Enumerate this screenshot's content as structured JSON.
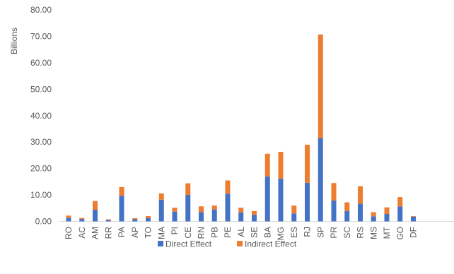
{
  "chart_data": {
    "type": "bar",
    "stacked": true,
    "title": "",
    "xlabel": "",
    "ylabel": "Billions",
    "ylim": [
      0,
      80
    ],
    "yticks": [
      "0.00",
      "10.00",
      "20.00",
      "30.00",
      "40.00",
      "50.00",
      "60.00",
      "70.00",
      "80.00"
    ],
    "grid": false,
    "legend_position": "bottom",
    "categories": [
      "RO",
      "AC",
      "AM",
      "RR",
      "PA",
      "AP",
      "TO",
      "MA",
      "PI",
      "CE",
      "RN",
      "PB",
      "PE",
      "AL",
      "SE",
      "BA",
      "MG",
      "ES",
      "RJ",
      "SP",
      "PR",
      "SC",
      "RS",
      "MS",
      "MT",
      "GO",
      "DF"
    ],
    "series": [
      {
        "name": "Direct Effect",
        "color": "#4472C4",
        "values": [
          1.3,
          0.9,
          4.4,
          0.5,
          9.7,
          0.8,
          1.2,
          8.2,
          3.7,
          10.0,
          3.5,
          4.5,
          10.5,
          3.4,
          2.5,
          17.0,
          16.2,
          3.0,
          14.6,
          31.5,
          7.9,
          3.9,
          6.7,
          1.9,
          2.8,
          5.6,
          1.8
        ]
      },
      {
        "name": "Indirect Effect",
        "color": "#ED7D31",
        "values": [
          0.9,
          0.4,
          3.3,
          0.3,
          3.3,
          0.4,
          0.8,
          2.4,
          1.5,
          4.4,
          2.2,
          1.5,
          5.0,
          1.8,
          1.4,
          8.6,
          10.1,
          3.0,
          14.4,
          39.2,
          6.6,
          3.3,
          6.6,
          1.6,
          2.5,
          3.6,
          0.2
        ]
      }
    ]
  }
}
